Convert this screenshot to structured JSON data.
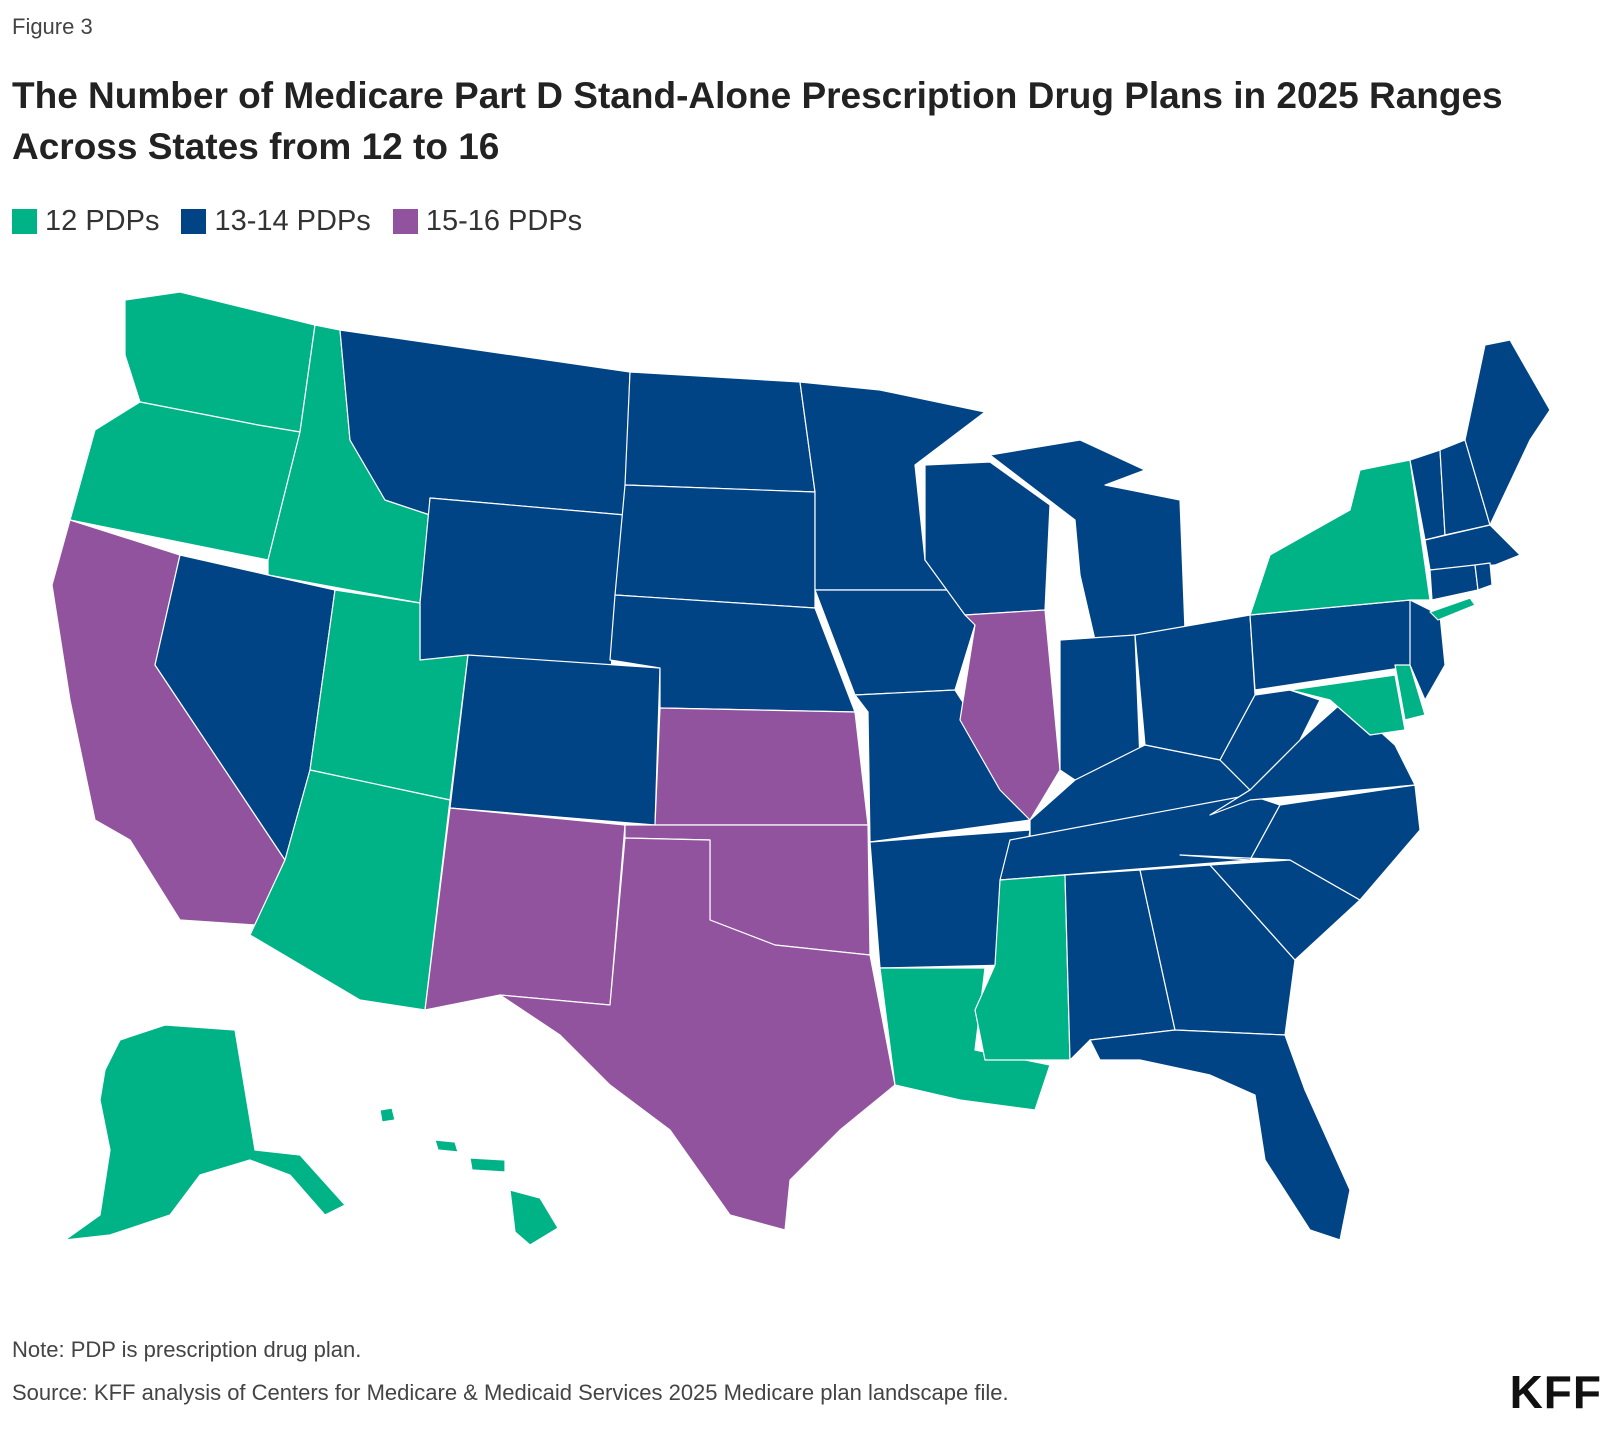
{
  "figure_label": "Figure 3",
  "title": "The Number of Medicare Part D Stand-Alone Prescription Drug Plans in 2025 Ranges Across States from 12 to 16",
  "legend": [
    {
      "label": "12 PDPs",
      "color": "#00b386"
    },
    {
      "label": "13-14 PDPs",
      "color": "#004485"
    },
    {
      "label": "15-16 PDPs",
      "color": "#91529e"
    }
  ],
  "map_data": {
    "type": "choropleth",
    "categories": {
      "12 PDPs": [
        "WA",
        "OR",
        "ID",
        "UT",
        "AZ",
        "NY",
        "NJ-shore",
        "MD",
        "DE",
        "LA",
        "MS",
        "AK",
        "HI"
      ],
      "13-14 PDPs": [
        "MT",
        "WY",
        "NV",
        "CO",
        "ND",
        "SD",
        "NE",
        "MN",
        "IA",
        "MO",
        "AR",
        "WI",
        "MI",
        "IN",
        "OH",
        "KY",
        "TN",
        "AL",
        "GA",
        "FL",
        "SC",
        "NC",
        "VA",
        "WV",
        "PA",
        "NJ",
        "CT",
        "MA",
        "RI",
        "VT",
        "NH",
        "ME"
      ],
      "15-16 PDPs": [
        "CA",
        "IL",
        "KS",
        "OK",
        "TX",
        "NM"
      ]
    }
  },
  "note": "Note: PDP is prescription drug plan.",
  "source": "Source: KFF analysis of Centers for Medicare & Medicaid Services 2025 Medicare plan landscape file.",
  "logo": "KFF"
}
